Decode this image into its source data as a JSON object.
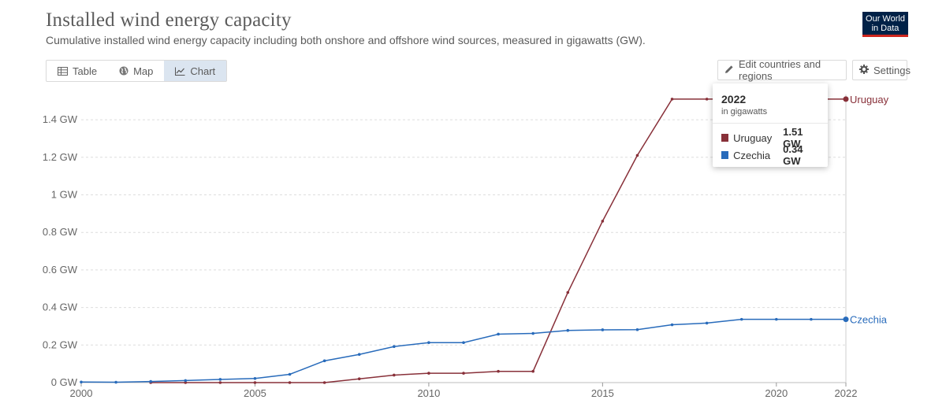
{
  "header": {
    "title": "Installed wind energy capacity",
    "subtitle": "Cumulative installed wind energy capacity including both onshore and offshore wind sources, measured in gigawatts (GW).",
    "logo_line1": "Our World",
    "logo_line2": "in Data"
  },
  "tabs": [
    {
      "label": "Table",
      "icon": "table-icon"
    },
    {
      "label": "Map",
      "icon": "globe-icon"
    },
    {
      "label": "Chart",
      "icon": "line-chart-icon",
      "active": true
    }
  ],
  "controls": {
    "edit_label": "Edit countries and regions",
    "settings_label": "Settings"
  },
  "tooltip": {
    "year": "2022",
    "unit": "in gigawatts",
    "rows": [
      {
        "name": "Uruguay",
        "value": "1.51 GW",
        "color": "#883039"
      },
      {
        "name": "Czechia",
        "value": "0.34 GW",
        "color": "#286bbb"
      }
    ]
  },
  "chart_data": {
    "type": "line",
    "title": "Installed wind energy capacity",
    "ylabel": "",
    "xlabel": "",
    "ylim": [
      0,
      1.5
    ],
    "xlim": [
      2000,
      2022
    ],
    "y_ticks": [
      0,
      0.2,
      0.4,
      0.6,
      0.8,
      1,
      1.2,
      1.4
    ],
    "y_tick_labels": [
      "0 GW",
      "0.2 GW",
      "0.4 GW",
      "0.6 GW",
      "0.8 GW",
      "1 GW",
      "1.2 GW",
      "1.4 GW"
    ],
    "x_ticks": [
      2000,
      2005,
      2010,
      2015,
      2020,
      2022
    ],
    "x_tick_labels": [
      "2000",
      "2005",
      "2010",
      "2015",
      "2020",
      "2022"
    ],
    "grid": true,
    "legend": "line-end labels",
    "x": [
      2000,
      2001,
      2002,
      2003,
      2004,
      2005,
      2006,
      2007,
      2008,
      2009,
      2010,
      2011,
      2012,
      2013,
      2014,
      2015,
      2016,
      2017,
      2018,
      2019,
      2020,
      2021,
      2022
    ],
    "series": [
      {
        "name": "Uruguay",
        "color": "#883039",
        "values": [
          null,
          null,
          0,
          0,
          0,
          0,
          0,
          0,
          0.02,
          0.04,
          0.05,
          0.05,
          0.06,
          0.06,
          0.48,
          0.86,
          1.21,
          1.51,
          1.51,
          1.51,
          1.51,
          1.51,
          1.51
        ]
      },
      {
        "name": "Czechia",
        "color": "#286bbb",
        "values": [
          0.003,
          0.002,
          0.006,
          0.011,
          0.017,
          0.022,
          0.044,
          0.116,
          0.15,
          0.192,
          0.213,
          0.213,
          0.258,
          0.262,
          0.278,
          0.281,
          0.282,
          0.308,
          0.317,
          0.337,
          0.337,
          0.337,
          0.337
        ]
      }
    ]
  }
}
